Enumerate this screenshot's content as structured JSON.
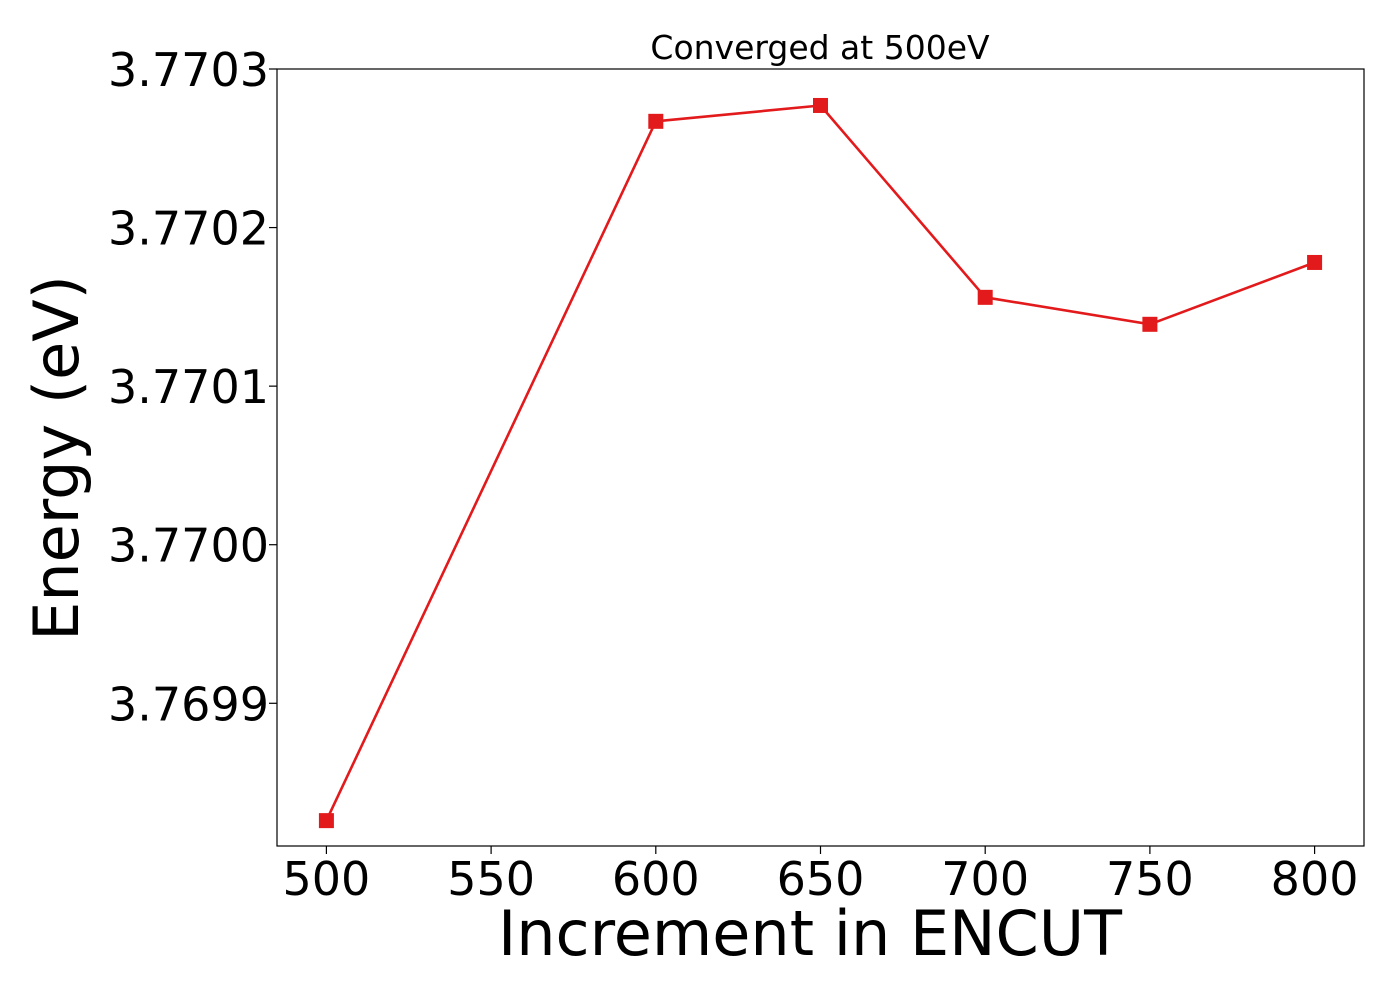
{
  "chart_data": {
    "type": "line",
    "title": "Converged at 500eV",
    "xlabel": "Increment in ENCUT",
    "ylabel": "Energy (eV)",
    "x": [
      500,
      600,
      650,
      700,
      750,
      800
    ],
    "series": [
      {
        "values": [
          3.769826,
          3.770267,
          3.770277,
          3.770156,
          3.770139,
          3.770178
        ],
        "color": "#e31a1c",
        "marker": "square"
      }
    ],
    "xticks": [
      500,
      550,
      600,
      650,
      700,
      750,
      800
    ],
    "xtick_labels": [
      "500",
      "550",
      "600",
      "650",
      "700",
      "750",
      "800"
    ],
    "yticks": [
      3.7699,
      3.77,
      3.7701,
      3.7702,
      3.7703
    ],
    "ytick_labels": [
      "3.7699",
      "3.7700",
      "3.7701",
      "3.7702",
      "3.7703"
    ],
    "xlim": [
      485,
      815
    ],
    "ylim": [
      3.76981,
      3.7703
    ],
    "grid": false,
    "legend": false
  }
}
